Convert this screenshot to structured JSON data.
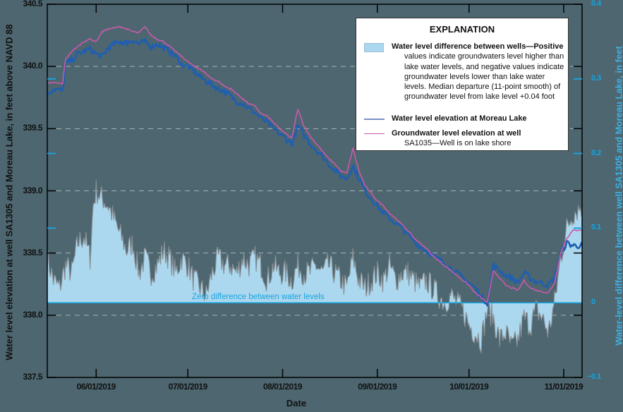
{
  "chart_data": {
    "type": "line",
    "title": "",
    "xlabel": "Date",
    "ylabel": "Water level elevation at well SA1305 and Moreau Lake, in feet above NAVD 88",
    "y2label": "Water-level difference between well SA1305 and Moreau Lake, in feet",
    "x_ticks": [
      "06/01/2019",
      "07/01/2019",
      "08/01/2019",
      "09/01/2019",
      "10/01/2019",
      "11/01/2019"
    ],
    "y_ticks": [
      "340.5",
      "340.0",
      "339.5",
      "339.0",
      "338.5",
      "338.0",
      "337.5"
    ],
    "y2_ticks": [
      "0.4",
      "0.3",
      "0.2",
      "0.1",
      "0",
      "−0.1"
    ],
    "ylim": [
      337.5,
      340.5
    ],
    "y2lim": [
      -0.1,
      0.4
    ],
    "xlim_days": [
      0,
      175
    ],
    "x_start_date": "05/16/2019",
    "grid": "horizontal dashed at left-axis major ticks",
    "legend_position": "upper right",
    "annotation_zero": "Zero difference between water levels",
    "colors": {
      "background": "#4d6670",
      "lake": "#1f5fb0",
      "well": "#c85aaa",
      "difference_fill": "#acd8ef",
      "difference_edge": "#8a8f93",
      "zero_line": "#1aa3dc",
      "right_axis": "#1aa3dc"
    },
    "series": [
      {
        "name": "Water level elevation at Moreau Lake",
        "axis": "left",
        "x_days": [
          0,
          2,
          5,
          6,
          8,
          10,
          12,
          14,
          16,
          18,
          20,
          22,
          24,
          26,
          28,
          30,
          32,
          34,
          36,
          38,
          40,
          42,
          44,
          46,
          48,
          50,
          52,
          54,
          56,
          58,
          60,
          62,
          64,
          66,
          68,
          70,
          72,
          74,
          76,
          78,
          80,
          82,
          84,
          86,
          88,
          90,
          92,
          94,
          96,
          98,
          100,
          102,
          104,
          106,
          108,
          110,
          112,
          114,
          116,
          118,
          120,
          122,
          124,
          126,
          128,
          130,
          132,
          134,
          136,
          138,
          140,
          142,
          144,
          146,
          148,
          150,
          152,
          154,
          156,
          158,
          160,
          162,
          164,
          166,
          168,
          170,
          172,
          175
        ],
        "values": [
          339.78,
          339.82,
          339.8,
          340.02,
          340.05,
          340.1,
          340.12,
          340.14,
          340.1,
          340.08,
          340.15,
          340.18,
          340.2,
          340.19,
          340.21,
          340.18,
          340.2,
          340.16,
          340.18,
          340.15,
          340.12,
          340.08,
          340.02,
          340.0,
          339.96,
          339.92,
          339.88,
          339.85,
          339.82,
          339.8,
          339.76,
          339.72,
          339.7,
          339.66,
          339.63,
          339.58,
          339.55,
          339.5,
          339.46,
          339.42,
          339.38,
          339.52,
          339.45,
          339.38,
          339.33,
          339.28,
          339.22,
          339.17,
          339.12,
          339.1,
          339.2,
          339.1,
          339.0,
          338.94,
          338.88,
          338.82,
          338.78,
          338.74,
          338.7,
          338.65,
          338.6,
          338.55,
          338.52,
          338.48,
          338.45,
          338.42,
          338.38,
          338.34,
          338.3,
          338.26,
          338.22,
          338.15,
          338.1,
          338.4,
          338.36,
          338.32,
          338.3,
          338.26,
          338.34,
          338.3,
          338.27,
          338.26,
          338.24,
          338.3,
          338.5,
          338.58,
          338.56,
          338.56
        ]
      },
      {
        "name": "Groundwater level elevation at well SA1035—Well is on lake shore",
        "axis": "left",
        "x_days": [
          0,
          2,
          5,
          6,
          8,
          10,
          12,
          14,
          16,
          18,
          20,
          22,
          24,
          26,
          28,
          30,
          32,
          34,
          36,
          38,
          40,
          42,
          44,
          46,
          48,
          50,
          52,
          54,
          56,
          58,
          60,
          62,
          64,
          66,
          68,
          70,
          72,
          74,
          76,
          78,
          80,
          82,
          84,
          86,
          88,
          90,
          92,
          94,
          96,
          98,
          100,
          102,
          104,
          106,
          108,
          110,
          112,
          114,
          116,
          118,
          120,
          122,
          124,
          126,
          128,
          130,
          132,
          134,
          136,
          138,
          140,
          142,
          144,
          146,
          148,
          150,
          152,
          154,
          156,
          158,
          160,
          162,
          164,
          166,
          168,
          170,
          172,
          175
        ],
        "values": [
          339.86,
          339.87,
          339.86,
          340.06,
          340.12,
          340.16,
          340.2,
          340.22,
          340.2,
          340.28,
          340.3,
          340.31,
          340.32,
          340.3,
          340.28,
          340.27,
          340.32,
          340.25,
          340.22,
          340.2,
          340.16,
          340.12,
          340.08,
          340.04,
          340.0,
          339.98,
          339.94,
          339.9,
          339.88,
          339.84,
          339.82,
          339.78,
          339.74,
          339.7,
          339.68,
          339.62,
          339.6,
          339.55,
          339.5,
          339.46,
          339.42,
          339.66,
          339.52,
          339.44,
          339.38,
          339.32,
          339.26,
          339.22,
          339.16,
          339.14,
          339.34,
          339.16,
          339.04,
          338.98,
          338.92,
          338.88,
          338.82,
          338.78,
          338.73,
          338.68,
          338.62,
          338.58,
          338.54,
          338.48,
          338.44,
          338.4,
          338.36,
          338.32,
          338.28,
          338.24,
          338.18,
          338.14,
          338.1,
          338.36,
          338.3,
          338.24,
          338.22,
          338.2,
          338.28,
          338.22,
          338.2,
          338.19,
          338.18,
          338.26,
          338.5,
          338.62,
          338.68,
          338.69
        ]
      },
      {
        "name": "Water level difference between wells",
        "axis": "right",
        "x_days": [
          0,
          2,
          4,
          6,
          8,
          10,
          12,
          14,
          15,
          16,
          18,
          20,
          22,
          24,
          26,
          28,
          30,
          32,
          34,
          36,
          38,
          40,
          42,
          44,
          46,
          48,
          50,
          52,
          54,
          56,
          58,
          60,
          62,
          64,
          66,
          68,
          70,
          72,
          74,
          76,
          78,
          80,
          82,
          84,
          86,
          88,
          90,
          92,
          94,
          96,
          98,
          100,
          102,
          104,
          106,
          108,
          110,
          112,
          114,
          116,
          118,
          120,
          122,
          124,
          126,
          128,
          130,
          132,
          134,
          136,
          138,
          140,
          142,
          144,
          146,
          148,
          150,
          152,
          154,
          156,
          158,
          160,
          162,
          164,
          166,
          168,
          170,
          172,
          175
        ],
        "values": [
          0.06,
          0.03,
          0.02,
          0.05,
          0.04,
          0.08,
          0.09,
          0.06,
          0.13,
          0.15,
          0.14,
          0.13,
          0.11,
          0.09,
          0.07,
          0.08,
          0.04,
          0.06,
          0.04,
          0.05,
          0.07,
          0.06,
          0.04,
          0.06,
          0.05,
          0.03,
          0.02,
          0.01,
          0.04,
          0.06,
          0.05,
          0.05,
          0.04,
          0.06,
          0.05,
          0.06,
          0.05,
          0.03,
          0.05,
          0.04,
          0.04,
          0.03,
          0.05,
          0.04,
          0.04,
          0.05,
          0.04,
          0.05,
          0.04,
          0.03,
          0.02,
          0.06,
          0.03,
          0.02,
          0.03,
          0.04,
          0.03,
          0.05,
          0.03,
          0.04,
          0.04,
          0.03,
          0.02,
          0.03,
          0.02,
          0.01,
          0.0,
          0.01,
          0.0,
          -0.01,
          -0.03,
          -0.04,
          -0.05,
          -0.01,
          -0.02,
          -0.05,
          -0.04,
          -0.06,
          -0.05,
          -0.02,
          -0.03,
          -0.01,
          -0.02,
          -0.04,
          0.0,
          0.06,
          0.1,
          0.12,
          0.13
        ]
      }
    ],
    "median_departure_ft": 0.04
  },
  "legend": {
    "title": "EXPLANATION",
    "item1_lead": "Water level difference between wells—Positive",
    "item1_rest": "values indicate groundwaters level higher than lake water levels, and negative values indicate groundwater levels lower than lake water levels. Median departure (11-point smooth) of groundwater level from lake level +0.04 foot",
    "item2": "Water level elevation at Moreau Lake",
    "item3_lead": "Groundwater level elevation at well",
    "item3_rest": "SA1035—Well is on lake shore"
  }
}
